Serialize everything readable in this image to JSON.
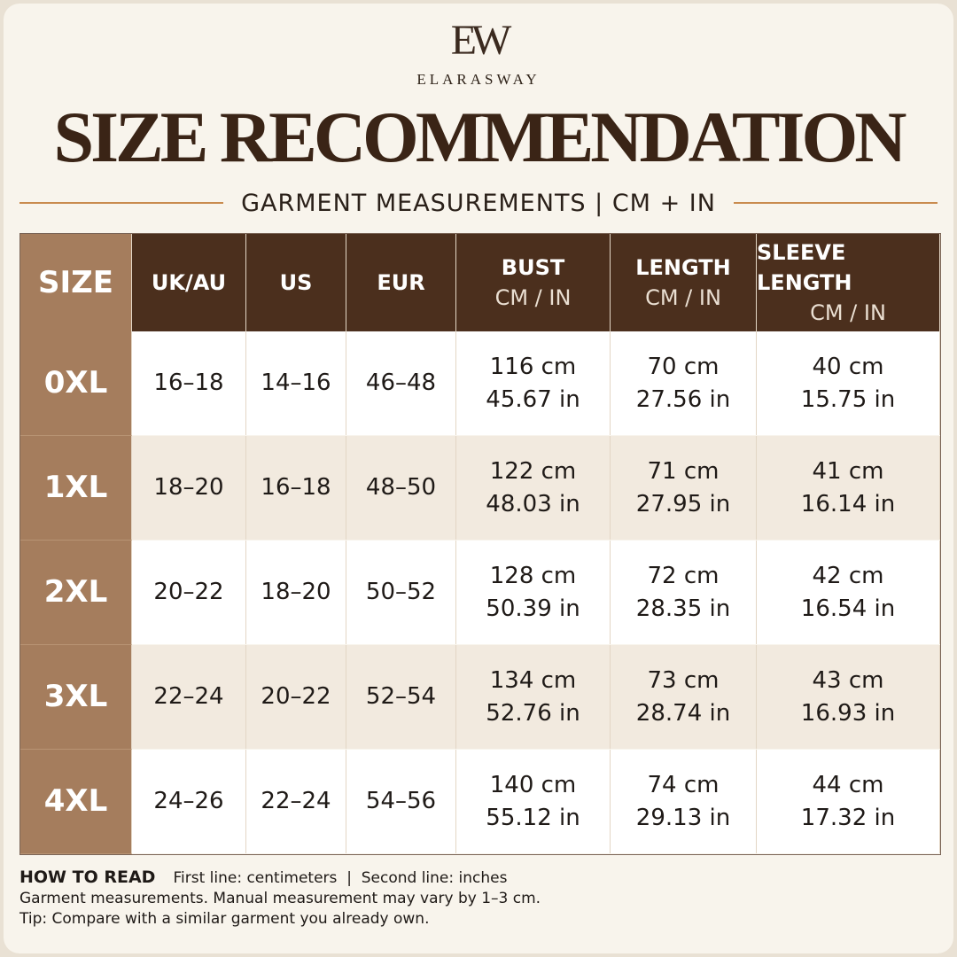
{
  "brand": {
    "monogram": "EW",
    "name": "ELARASWAY"
  },
  "title": "SIZE RECOMMENDATION",
  "subtitle": "GARMENT MEASUREMENTS | CM + IN",
  "table": {
    "header": [
      {
        "label": "SIZE"
      },
      {
        "label": "UK/AU"
      },
      {
        "label": "US"
      },
      {
        "label": "EUR"
      },
      {
        "label": "BUST",
        "unit": "CM / IN"
      },
      {
        "label": "LENGTH",
        "unit": "CM / IN"
      },
      {
        "label": "SLEEVE LENGTH",
        "unit": "CM / IN"
      }
    ],
    "rows": [
      {
        "size": "0XL",
        "cells": [
          [
            "16–18"
          ],
          [
            "14–16"
          ],
          [
            "46–48"
          ],
          [
            "116 cm",
            "45.67 in"
          ],
          [
            "70 cm",
            "27.56 in"
          ],
          [
            "40 cm",
            "15.75 in"
          ]
        ]
      },
      {
        "size": "1XL",
        "cells": [
          [
            "18–20"
          ],
          [
            "16–18"
          ],
          [
            "48–50"
          ],
          [
            "122 cm",
            "48.03 in"
          ],
          [
            "71 cm",
            "27.95 in"
          ],
          [
            "41 cm",
            "16.14 in"
          ]
        ]
      },
      {
        "size": "2XL",
        "cells": [
          [
            "20–22"
          ],
          [
            "18–20"
          ],
          [
            "50–52"
          ],
          [
            "128 cm",
            "50.39 in"
          ],
          [
            "72 cm",
            "28.35 in"
          ],
          [
            "42 cm",
            "16.54 in"
          ]
        ]
      },
      {
        "size": "3XL",
        "cells": [
          [
            "22–24"
          ],
          [
            "20–22"
          ],
          [
            "52–54"
          ],
          [
            "134 cm",
            "52.76 in"
          ],
          [
            "73 cm",
            "28.74 in"
          ],
          [
            "43 cm",
            "16.93 in"
          ]
        ]
      },
      {
        "size": "4XL",
        "cells": [
          [
            "24–26"
          ],
          [
            "22–24"
          ],
          [
            "54–56"
          ],
          [
            "140 cm",
            "55.12 in"
          ],
          [
            "74 cm",
            "29.13 in"
          ],
          [
            "44 cm",
            "17.32 in"
          ]
        ]
      }
    ]
  },
  "notes": {
    "heading": "HOW TO READ",
    "legend": "First line: centimeters  |  Second line: inches",
    "lines": [
      "Garment measurements. Manual measurement may vary by 1–3 cm.",
      "Tip: Compare with a similar garment you already own."
    ]
  }
}
